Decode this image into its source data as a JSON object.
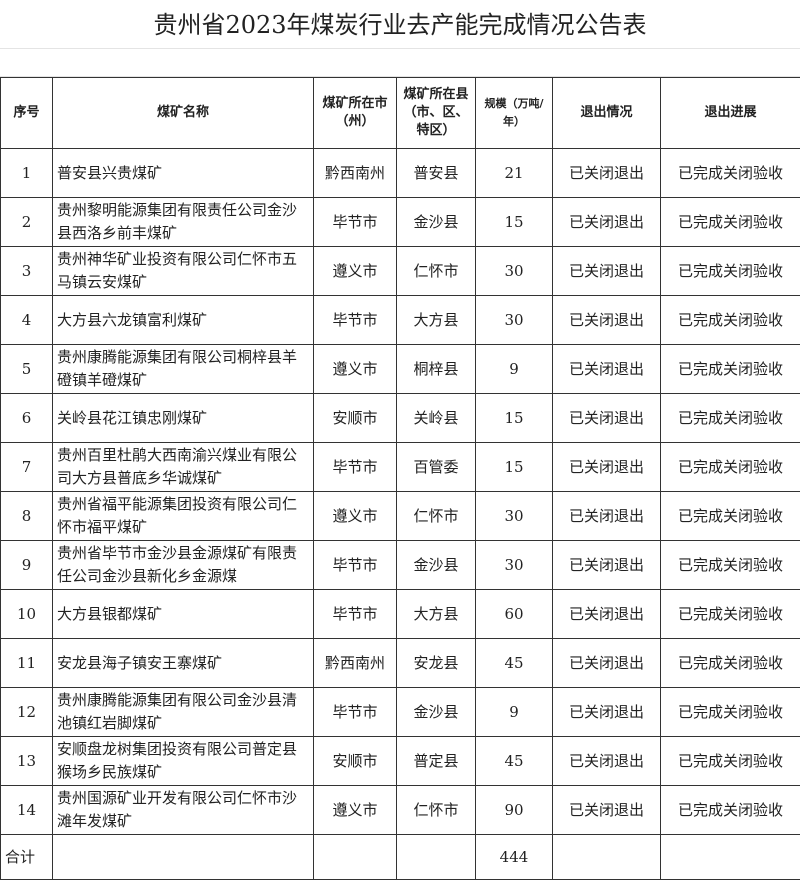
{
  "title": "贵州省2023年煤炭行业去产能完成情况公告表",
  "headers": [
    "序号",
    "煤矿名称",
    "煤矿所在市（州）",
    "煤矿所在县（市、区、特区）",
    "规模（万吨/年）",
    "退出情况",
    "退出进展"
  ],
  "rows": [
    {
      "no": "1",
      "name": "普安县兴贵煤矿",
      "city": "黔西南州",
      "county": "普安县",
      "scale": "21",
      "status": "已关闭退出",
      "progress": "已完成关闭验收"
    },
    {
      "no": "2",
      "name": "贵州黎明能源集团有限责任公司金沙县西洛乡前丰煤矿",
      "city": "毕节市",
      "county": "金沙县",
      "scale": "15",
      "status": "已关闭退出",
      "progress": "已完成关闭验收"
    },
    {
      "no": "3",
      "name": "贵州神华矿业投资有限公司仁怀市五马镇云安煤矿",
      "city": "遵义市",
      "county": "仁怀市",
      "scale": "30",
      "status": "已关闭退出",
      "progress": "已完成关闭验收"
    },
    {
      "no": "4",
      "name": "大方县六龙镇富利煤矿",
      "city": "毕节市",
      "county": "大方县",
      "scale": "30",
      "status": "已关闭退出",
      "progress": "已完成关闭验收"
    },
    {
      "no": "5",
      "name": "贵州康腾能源集团有限公司桐梓县羊磴镇羊磴煤矿",
      "city": "遵义市",
      "county": "桐梓县",
      "scale": "9",
      "status": "已关闭退出",
      "progress": "已完成关闭验收"
    },
    {
      "no": "6",
      "name": "关岭县花江镇忠刚煤矿",
      "city": "安顺市",
      "county": "关岭县",
      "scale": "15",
      "status": "已关闭退出",
      "progress": "已完成关闭验收"
    },
    {
      "no": "7",
      "name": "贵州百里杜鹃大西南渝兴煤业有限公司大方县普底乡华诚煤矿",
      "city": "毕节市",
      "county": "百管委",
      "scale": "15",
      "status": "已关闭退出",
      "progress": "已完成关闭验收"
    },
    {
      "no": "8",
      "name": "贵州省福平能源集团投资有限公司仁怀市福平煤矿",
      "city": "遵义市",
      "county": "仁怀市",
      "scale": "30",
      "status": "已关闭退出",
      "progress": "已完成关闭验收"
    },
    {
      "no": "9",
      "name": "贵州省毕节市金沙县金源煤矿有限责任公司金沙县新化乡金源煤",
      "city": "毕节市",
      "county": "金沙县",
      "scale": "30",
      "status": "已关闭退出",
      "progress": "已完成关闭验收"
    },
    {
      "no": "10",
      "name": "大方县银都煤矿",
      "city": "毕节市",
      "county": "大方县",
      "scale": "60",
      "status": "已关闭退出",
      "progress": "已完成关闭验收"
    },
    {
      "no": "11",
      "name": "安龙县海子镇安王寨煤矿",
      "city": "黔西南州",
      "county": "安龙县",
      "scale": "45",
      "status": "已关闭退出",
      "progress": "已完成关闭验收"
    },
    {
      "no": "12",
      "name": "贵州康腾能源集团有限公司金沙县清池镇红岩脚煤矿",
      "city": "毕节市",
      "county": "金沙县",
      "scale": "9",
      "status": "已关闭退出",
      "progress": "已完成关闭验收"
    },
    {
      "no": "13",
      "name": "安顺盘龙树集团投资有限公司普定县猴场乡民族煤矿",
      "city": "安顺市",
      "county": "普定县",
      "scale": "45",
      "status": "已关闭退出",
      "progress": "已完成关闭验收"
    },
    {
      "no": "14",
      "name": "贵州国源矿业开发有限公司仁怀市沙滩年发煤矿",
      "city": "遵义市",
      "county": "仁怀市",
      "scale": "90",
      "status": "已关闭退出",
      "progress": "已完成关闭验收"
    }
  ],
  "total": {
    "label": "合计",
    "scale": "444"
  }
}
